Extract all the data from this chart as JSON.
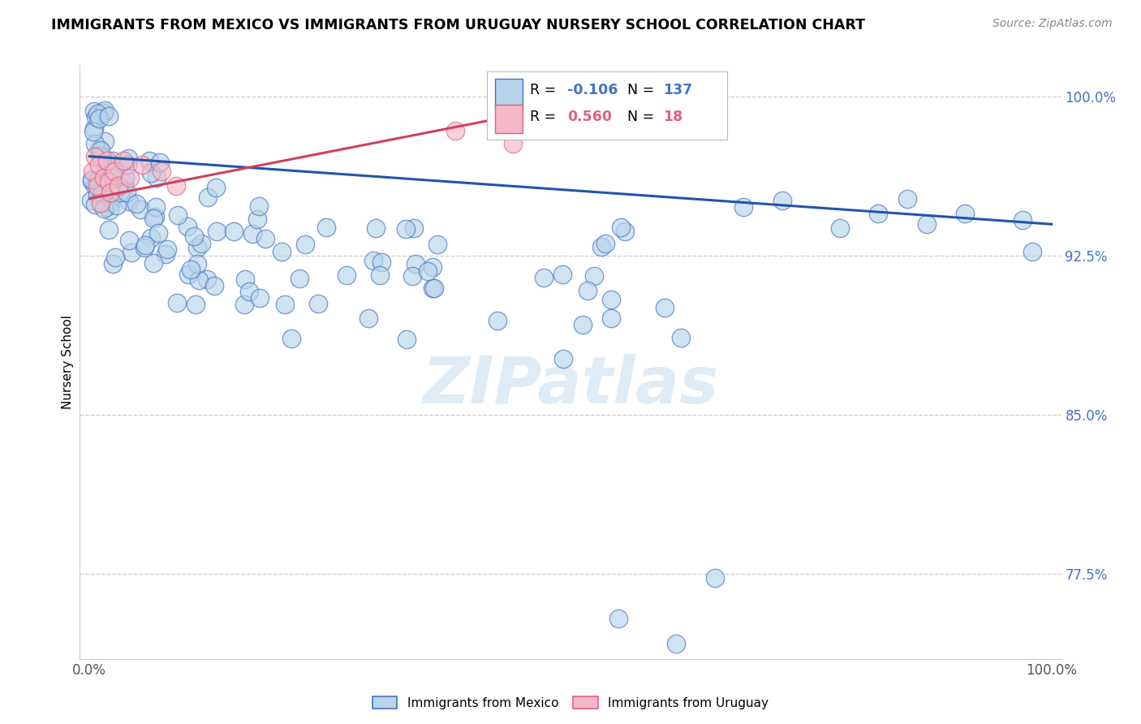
{
  "title": "IMMIGRANTS FROM MEXICO VS IMMIGRANTS FROM URUGUAY NURSERY SCHOOL CORRELATION CHART",
  "source": "Source: ZipAtlas.com",
  "ylabel": "Nursery School",
  "xlim": [
    -0.01,
    1.01
  ],
  "ylim": [
    0.735,
    1.015
  ],
  "yticks": [
    0.775,
    0.85,
    0.925,
    1.0
  ],
  "ytick_labels": [
    "77.5%",
    "85.0%",
    "92.5%",
    "100.0%"
  ],
  "mexico_R": "-0.106",
  "mexico_N": "137",
  "uruguay_R": "0.560",
  "uruguay_N": "18",
  "mexico_color": "#b8d4ea",
  "mexico_edge_color": "#4472c4",
  "mexico_line_color": "#2255aa",
  "uruguay_color": "#f4b8c8",
  "uruguay_edge_color": "#e06080",
  "uruguay_line_color": "#d04060",
  "legend_label_mexico": "Immigrants from Mexico",
  "legend_label_uruguay": "Immigrants from Uruguay",
  "watermark_text": "ZIPatlas",
  "mx_line_x0": 0.0,
  "mx_line_x1": 1.0,
  "mx_line_y0": 0.972,
  "mx_line_y1": 0.94,
  "ur_line_x0": 0.0,
  "ur_line_x1": 0.45,
  "ur_line_y0": 0.952,
  "ur_line_y1": 0.992
}
